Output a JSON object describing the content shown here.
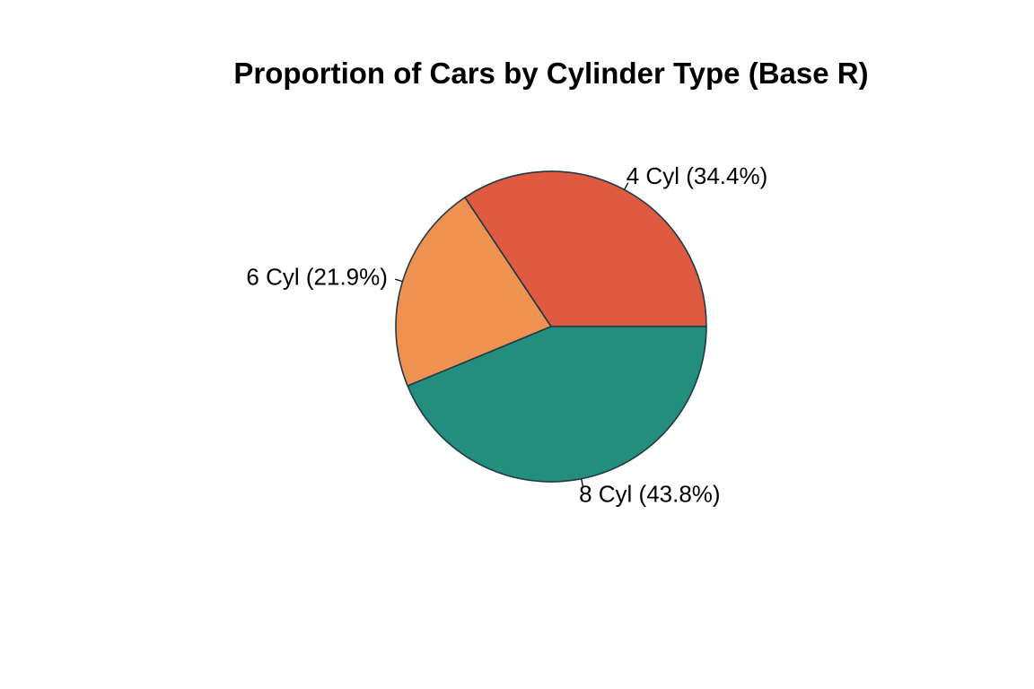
{
  "chart_data": {
    "type": "pie",
    "title": "Proportion of Cars by Cylinder Type (Base R)",
    "start_angle_deg": 0,
    "direction": "counterclockwise",
    "slices": [
      {
        "category": "4 Cyl",
        "value": 34.4,
        "label": "4 Cyl (34.4%)",
        "color": "#E05A42"
      },
      {
        "category": "6 Cyl",
        "value": 21.9,
        "label": "6 Cyl (21.9%)",
        "color": "#EF9150"
      },
      {
        "category": "8 Cyl",
        "value": 43.8,
        "label": "8 Cyl (43.8%)",
        "color": "#248E7E"
      }
    ],
    "border_color": "#1F3A44"
  }
}
